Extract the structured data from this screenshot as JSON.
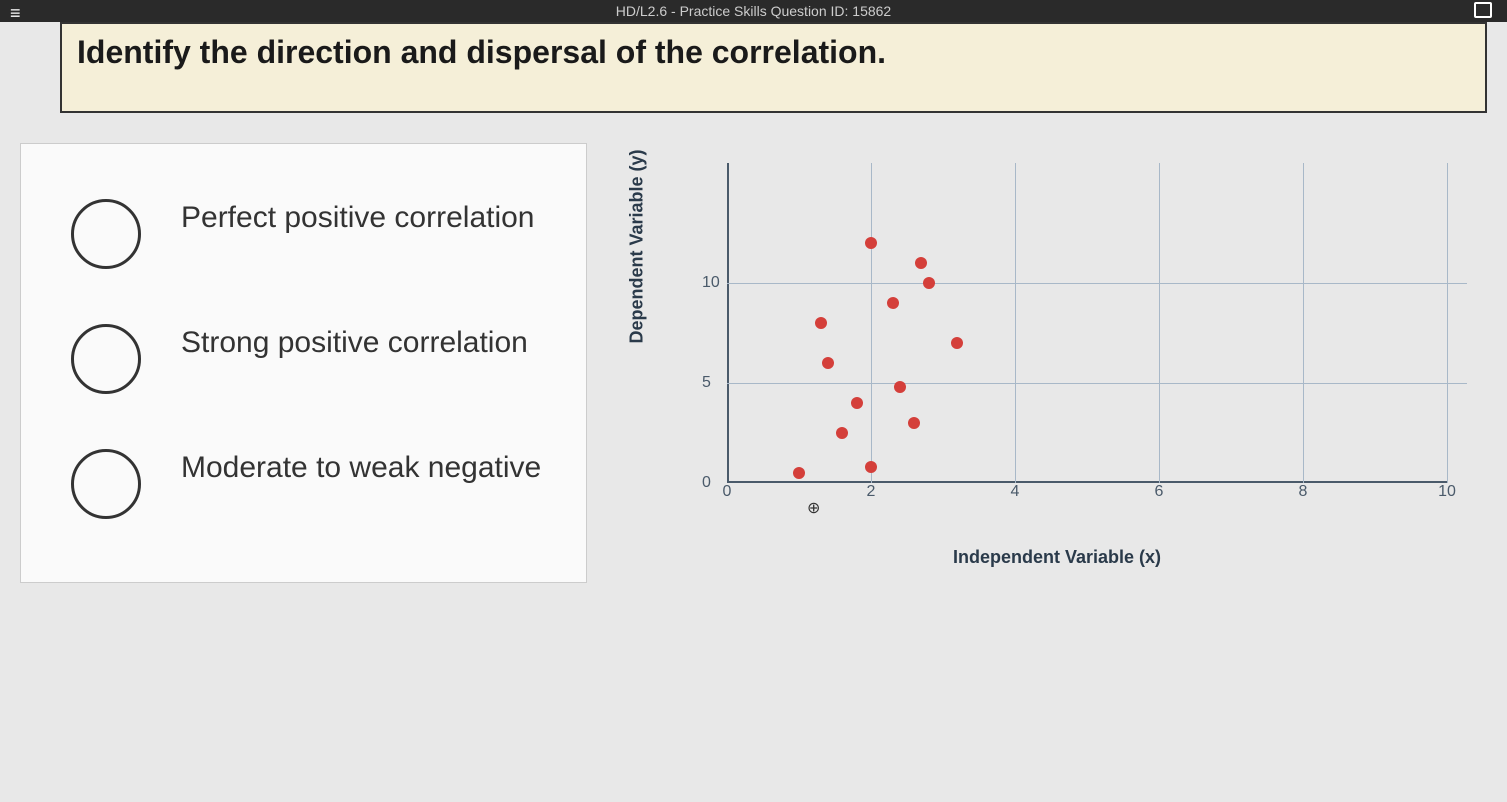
{
  "header": {
    "breadcrumb": "HD/L2.6 - Practice Skills Question ID: 15862",
    "question": "Identify the direction and dispersal of the correlation."
  },
  "options": [
    {
      "label": "Perfect positive correlation"
    },
    {
      "label": "Strong positive correlation"
    },
    {
      "label": "Moderate to weak negative"
    }
  ],
  "chart": {
    "type": "scatter",
    "y_label": "Dependent Variable (y)",
    "x_label": "Independent Variable (x)",
    "xlim": [
      0,
      10
    ],
    "ylim": [
      0,
      15
    ],
    "x_ticks": [
      0,
      2,
      4,
      6,
      8,
      10
    ],
    "y_ticks": [
      0,
      5,
      10
    ],
    "grid_color": "#a8b8c8",
    "axis_color": "#4a5a6a",
    "point_color": "#d43f3a",
    "point_radius": 6,
    "label_fontsize": 18,
    "tick_fontsize": 16,
    "background_color": "#f0f0f0",
    "points": [
      {
        "x": 1.0,
        "y": 0.5
      },
      {
        "x": 1.3,
        "y": 8.0
      },
      {
        "x": 1.4,
        "y": 6.0
      },
      {
        "x": 1.6,
        "y": 2.5
      },
      {
        "x": 1.8,
        "y": 4.0
      },
      {
        "x": 2.0,
        "y": 12.0
      },
      {
        "x": 2.0,
        "y": 0.8
      },
      {
        "x": 2.3,
        "y": 9.0
      },
      {
        "x": 2.4,
        "y": 4.8
      },
      {
        "x": 2.6,
        "y": 3.0
      },
      {
        "x": 2.7,
        "y": 11.0
      },
      {
        "x": 2.8,
        "y": 10.0
      },
      {
        "x": 3.2,
        "y": 7.0
      }
    ]
  },
  "colors": {
    "question_bg": "#f5efd8",
    "page_bg": "#e8e8e8",
    "panel_bg": "#fafafa"
  }
}
